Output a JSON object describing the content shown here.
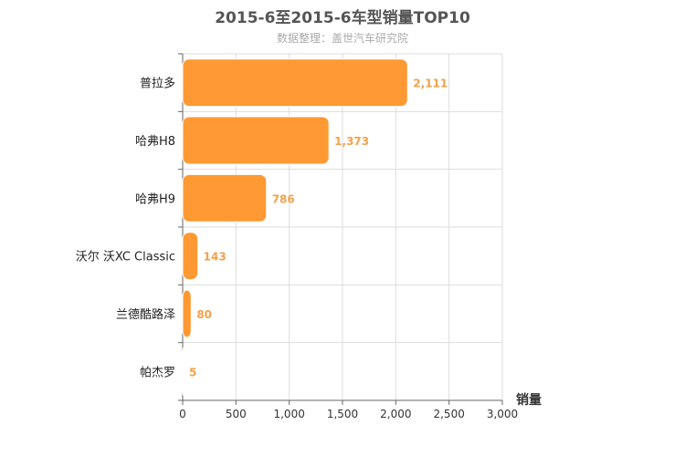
{
  "chart_data": {
    "type": "bar",
    "orientation": "horizontal",
    "title": "2015-6至2015-6车型销量TOP10",
    "subtitle": "数据整理：盖世汽车研究院",
    "categories": [
      "普拉多",
      "哈弗H8",
      "哈弗H9",
      "沃尔 沃XC Classic",
      "兰德酷路泽",
      "帕杰罗"
    ],
    "values": [
      2111,
      1373,
      786,
      143,
      80,
      5
    ],
    "data_labels": [
      "2,111",
      "1,373",
      "786",
      "143",
      "80",
      "5"
    ],
    "xlabel": "销量",
    "xlim": [
      0,
      3000
    ],
    "x_ticks": [
      0,
      500,
      1000,
      1500,
      2000,
      2500,
      3000
    ],
    "x_tick_labels": [
      "0",
      "500",
      "1,000",
      "1,500",
      "2,000",
      "2,500",
      "3,000"
    ],
    "grid": true,
    "colors": {
      "bar": "#ff9933",
      "bar_stroke": "#ffffff",
      "data_label": "#f5a04a",
      "grid": "#dddddd",
      "axis": "#666666"
    }
  }
}
